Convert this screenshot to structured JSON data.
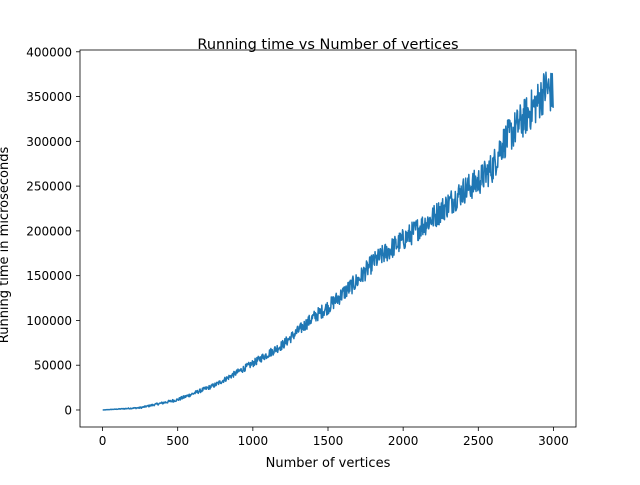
{
  "chart_data": {
    "type": "line",
    "title": "Running time vs Number of vertices",
    "xlabel": "Number of vertices",
    "ylabel": "Running time in microseconds",
    "xlim": [
      -150,
      3150
    ],
    "ylim": [
      -19000,
      402000
    ],
    "xticks": [
      0,
      500,
      1000,
      1500,
      2000,
      2500,
      3000
    ],
    "yticks": [
      0,
      50000,
      100000,
      150000,
      200000,
      250000,
      300000,
      350000,
      400000
    ],
    "grid": false,
    "series": [
      {
        "color": "#1f77b4",
        "trend": "quadratic",
        "x_range": [
          1,
          3000
        ],
        "points": [
          [
            0,
            0
          ],
          [
            250,
            2500
          ],
          [
            500,
            11500
          ],
          [
            750,
            28000
          ],
          [
            1000,
            52000
          ],
          [
            1200,
            73000
          ],
          [
            1400,
            103000
          ],
          [
            1500,
            115000
          ],
          [
            1700,
            145000
          ],
          [
            1800,
            165000
          ],
          [
            2000,
            190000
          ],
          [
            2200,
            215000
          ],
          [
            2400,
            245000
          ],
          [
            2500,
            255000
          ],
          [
            2600,
            272000
          ],
          [
            2650,
            295000
          ],
          [
            2800,
            325000
          ],
          [
            2900,
            345000
          ],
          [
            2950,
            360000
          ],
          [
            3000,
            352000
          ]
        ],
        "noise_envelope": [
          [
            0,
            0
          ],
          [
            800,
            3000
          ],
          [
            1200,
            6000
          ],
          [
            1500,
            9000
          ],
          [
            2000,
            14000
          ],
          [
            2500,
            18000
          ],
          [
            2700,
            22000
          ],
          [
            3000,
            28000
          ]
        ]
      }
    ]
  }
}
